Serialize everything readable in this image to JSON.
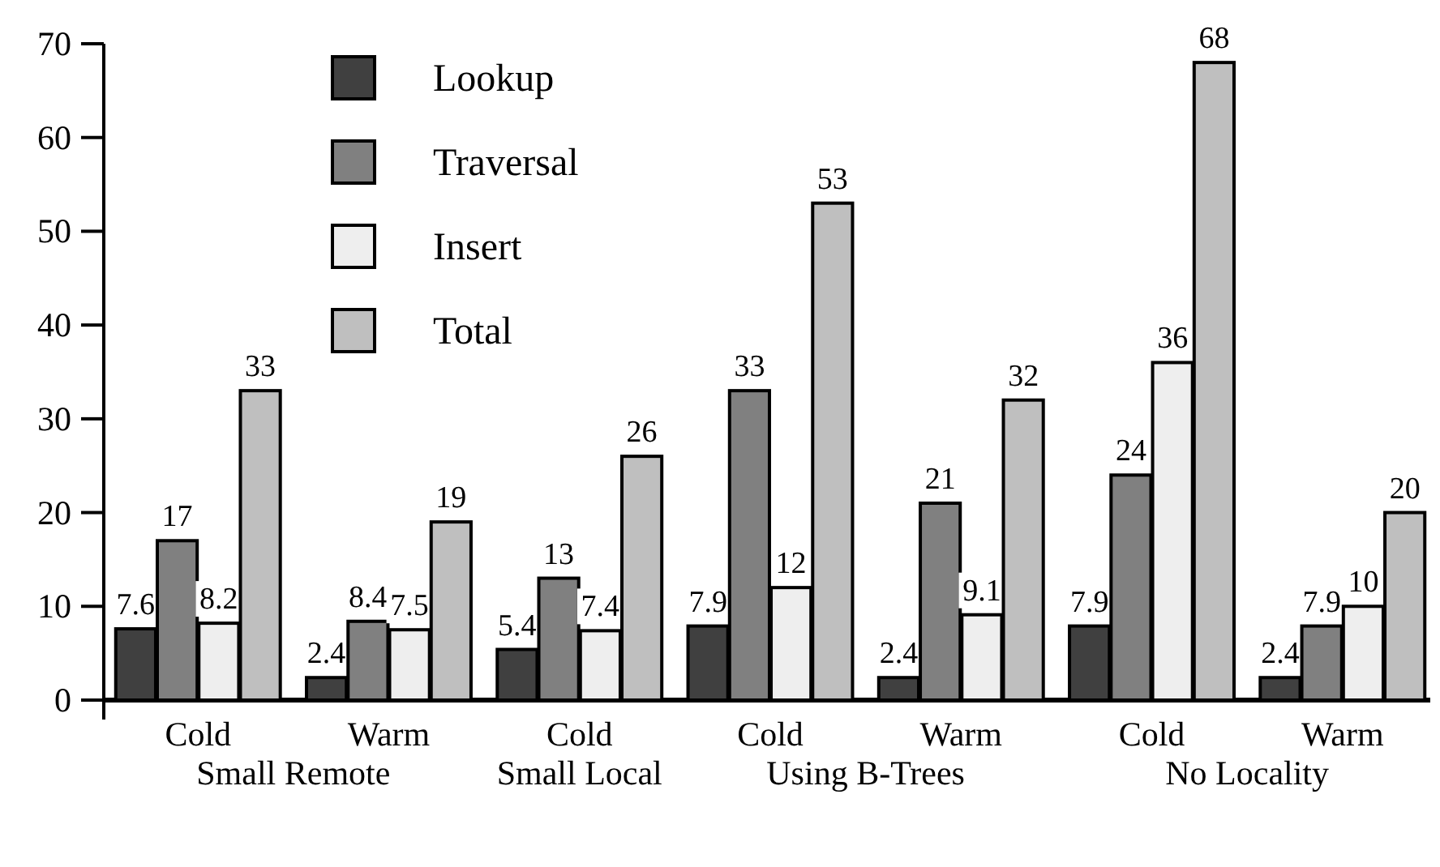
{
  "chart_data": {
    "type": "bar",
    "categories": [
      "Cold",
      "Warm",
      "Cold",
      "Cold",
      "Warm",
      "Cold",
      "Warm"
    ],
    "series": [
      {
        "name": "Lookup",
        "color": "#404040",
        "values": [
          7.6,
          2.4,
          5.4,
          7.9,
          2.4,
          7.9,
          2.4
        ]
      },
      {
        "name": "Traversal",
        "color": "#808080",
        "values": [
          17,
          8.4,
          13,
          33,
          21,
          24,
          7.9
        ]
      },
      {
        "name": "Insert",
        "color": "#eeeeee",
        "values": [
          8.2,
          7.5,
          7.4,
          12,
          9.1,
          36,
          10
        ]
      },
      {
        "name": "Total",
        "color": "#bfbfbf",
        "values": [
          33,
          19,
          26,
          53,
          32,
          68,
          20
        ]
      }
    ],
    "ylim": [
      0,
      70
    ],
    "yticks": [
      0,
      10,
      20,
      30,
      40,
      50,
      60,
      70
    ],
    "data_labels": true,
    "legend": "top left",
    "annotations": [
      "Small Remote",
      "Small Local",
      "Using B-Trees",
      "No Locality"
    ]
  }
}
